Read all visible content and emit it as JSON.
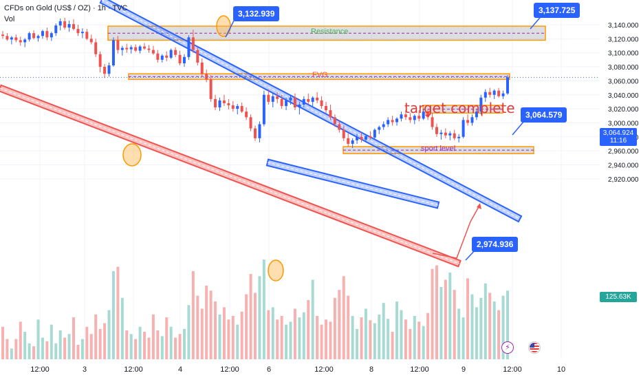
{
  "header": {
    "symbol_title": "CFDs on Gold (US$ / OZ) · 1h · TVC",
    "volume_label": "Vol"
  },
  "chart_data": {
    "type": "candlestick",
    "title": "CFDs on Gold (US$ / OZ) · 1h · TVC",
    "y_axis": {
      "ticks": [
        "3,140.000",
        "3,120.000",
        "3,100.000",
        "3,080.000",
        "3,060.000",
        "3,040.000",
        "3,020.000",
        "3,000.000",
        "2,980.000",
        "2,960.000",
        "2,940.000",
        "2,920.000"
      ],
      "tick_values": [
        3140,
        3120,
        3100,
        3080,
        3060,
        3040,
        3020,
        3000,
        2980,
        2960,
        2940,
        2920
      ],
      "range": [
        2912,
        3150
      ]
    },
    "x_axis": {
      "ticks": [
        "12:00",
        "3",
        "12:00",
        "4",
        "12:00",
        "6",
        "12:00",
        "8",
        "12:00",
        "9",
        "12:00",
        "10"
      ]
    },
    "current_price": "3,064.924",
    "countdown": "11:16",
    "volume_value": "125.63K",
    "colors": {
      "up": "#26a69a",
      "down": "#ef5350",
      "accent": "#2962ff",
      "zone_border": "#ff9800",
      "annotation_red": "#e53935"
    },
    "zones": [
      {
        "label": "Resistance",
        "low": 3118,
        "high": 3138,
        "label_color": "#4caf50"
      },
      {
        "label": "FVG",
        "low": 3062,
        "high": 3070,
        "label_color": "#ef5350"
      },
      {
        "label": "",
        "low": 3014,
        "high": 3025,
        "label_color": ""
      },
      {
        "label": "sport level",
        "low": 2956,
        "high": 2966,
        "label_color": "#9c27b0"
      }
    ],
    "callouts": [
      "3,132.939",
      "3,137.725",
      "3,064.579",
      "2,974.936"
    ],
    "annotations": [
      "target complete"
    ],
    "icons": [
      "lightning-icon",
      "us-flag-icon"
    ],
    "candles": [
      [
        3126,
        3131,
        3120,
        3124
      ],
      [
        3124,
        3128,
        3117,
        3119
      ],
      [
        3119,
        3124,
        3112,
        3122
      ],
      [
        3122,
        3126,
        3115,
        3118
      ],
      [
        3118,
        3123,
        3110,
        3115
      ],
      [
        3115,
        3121,
        3108,
        3119
      ],
      [
        3119,
        3130,
        3116,
        3128
      ],
      [
        3128,
        3132,
        3119,
        3121
      ],
      [
        3121,
        3126,
        3116,
        3124
      ],
      [
        3124,
        3133,
        3120,
        3131
      ],
      [
        3131,
        3136,
        3118,
        3122
      ],
      [
        3122,
        3130,
        3117,
        3128
      ],
      [
        3128,
        3142,
        3124,
        3139
      ],
      [
        3139,
        3149,
        3132,
        3145
      ],
      [
        3145,
        3150,
        3133,
        3136
      ],
      [
        3136,
        3146,
        3130,
        3141
      ],
      [
        3141,
        3148,
        3132,
        3134
      ],
      [
        3134,
        3140,
        3124,
        3128
      ],
      [
        3128,
        3135,
        3121,
        3130
      ],
      [
        3130,
        3134,
        3118,
        3120
      ],
      [
        3120,
        3126,
        3112,
        3115
      ],
      [
        3115,
        3120,
        3094,
        3098
      ],
      [
        3098,
        3102,
        3072,
        3080
      ],
      [
        3080,
        3084,
        3064,
        3070
      ],
      [
        3070,
        3086,
        3066,
        3082
      ],
      [
        3082,
        3122,
        3080,
        3118
      ],
      [
        3118,
        3124,
        3099,
        3104
      ],
      [
        3104,
        3110,
        3096,
        3107
      ],
      [
        3107,
        3113,
        3100,
        3105
      ],
      [
        3105,
        3111,
        3099,
        3108
      ],
      [
        3108,
        3112,
        3101,
        3103
      ],
      [
        3103,
        3111,
        3099,
        3109
      ],
      [
        3109,
        3114,
        3104,
        3106
      ],
      [
        3106,
        3111,
        3100,
        3104
      ],
      [
        3104,
        3110,
        3097,
        3099
      ],
      [
        3099,
        3104,
        3086,
        3090
      ],
      [
        3090,
        3098,
        3086,
        3096
      ],
      [
        3096,
        3102,
        3088,
        3093
      ],
      [
        3093,
        3106,
        3091,
        3104
      ],
      [
        3104,
        3108,
        3094,
        3097
      ],
      [
        3097,
        3103,
        3082,
        3085
      ],
      [
        3085,
        3098,
        3080,
        3094
      ],
      [
        3094,
        3125,
        3090,
        3122
      ],
      [
        3122,
        3133,
        3100,
        3104
      ],
      [
        3104,
        3108,
        3082,
        3086
      ],
      [
        3086,
        3092,
        3066,
        3070
      ],
      [
        3070,
        3076,
        3058,
        3062
      ],
      [
        3062,
        3068,
        3030,
        3034
      ],
      [
        3034,
        3040,
        3018,
        3022
      ],
      [
        3022,
        3036,
        3017,
        3032
      ],
      [
        3032,
        3040,
        3024,
        3028
      ],
      [
        3028,
        3034,
        3019,
        3025
      ],
      [
        3025,
        3031,
        3016,
        3020
      ],
      [
        3020,
        3027,
        3012,
        3024
      ],
      [
        3024,
        3029,
        3014,
        3016
      ],
      [
        3016,
        3022,
        3004,
        3008
      ],
      [
        3008,
        3012,
        2988,
        2992
      ],
      [
        2992,
        2996,
        2974,
        2978
      ],
      [
        2978,
        3002,
        2972,
        2998
      ],
      [
        2998,
        3046,
        2995,
        3040
      ],
      [
        3040,
        3048,
        3026,
        3030
      ],
      [
        3030,
        3042,
        3022,
        3038
      ],
      [
        3038,
        3044,
        3028,
        3034
      ],
      [
        3034,
        3040,
        3020,
        3024
      ],
      [
        3024,
        3036,
        3018,
        3032
      ],
      [
        3032,
        3040,
        3026,
        3036
      ],
      [
        3036,
        3042,
        3018,
        3022
      ],
      [
        3022,
        3030,
        3012,
        3026
      ],
      [
        3026,
        3038,
        3022,
        3034
      ],
      [
        3034,
        3042,
        3026,
        3030
      ],
      [
        3030,
        3038,
        3024,
        3036
      ],
      [
        3036,
        3044,
        3028,
        3032
      ],
      [
        3032,
        3038,
        3020,
        3024
      ],
      [
        3024,
        3030,
        3014,
        3018
      ],
      [
        3018,
        3026,
        3004,
        3008
      ],
      [
        3008,
        3012,
        2994,
        2998
      ],
      [
        2998,
        3004,
        2986,
        2990
      ],
      [
        2990,
        2996,
        2974,
        2978
      ],
      [
        2978,
        2986,
        2966,
        2970
      ],
      [
        2970,
        2978,
        2964,
        2975
      ],
      [
        2975,
        2984,
        2970,
        2980
      ],
      [
        2980,
        2986,
        2972,
        2976
      ],
      [
        2976,
        2984,
        2972,
        2981
      ],
      [
        2981,
        2988,
        2976,
        2979
      ],
      [
        2979,
        2992,
        2976,
        2990
      ],
      [
        2990,
        2996,
        2984,
        2994
      ],
      [
        2994,
        3002,
        2990,
        2998
      ],
      [
        2998,
        3008,
        2994,
        3004
      ],
      [
        3004,
        3010,
        2996,
        3001
      ],
      [
        3001,
        3008,
        2996,
        3006
      ],
      [
        3006,
        3016,
        3002,
        3012
      ],
      [
        3012,
        3018,
        3004,
        3008
      ],
      [
        3008,
        3014,
        3000,
        3004
      ],
      [
        3004,
        3012,
        2998,
        3010
      ],
      [
        3010,
        3018,
        3002,
        3006
      ],
      [
        3006,
        3020,
        3004,
        3016
      ],
      [
        3016,
        3020,
        3004,
        3008
      ],
      [
        3008,
        3014,
        2990,
        2994
      ],
      [
        2994,
        2999,
        2980,
        2984
      ],
      [
        2984,
        2990,
        2976,
        2986
      ],
      [
        2986,
        2992,
        2978,
        2982
      ],
      [
        2982,
        2988,
        2975,
        2985
      ],
      [
        2985,
        2990,
        2975,
        2978
      ],
      [
        2978,
        2984,
        2972,
        2980
      ],
      [
        2980,
        3008,
        2978,
        3004
      ],
      [
        3004,
        3012,
        2996,
        3000
      ],
      [
        3000,
        3012,
        2996,
        3008
      ],
      [
        3008,
        3020,
        3004,
        3016
      ],
      [
        3016,
        3040,
        3012,
        3036
      ],
      [
        3036,
        3048,
        3030,
        3044
      ],
      [
        3044,
        3050,
        3036,
        3040
      ],
      [
        3040,
        3048,
        3034,
        3046
      ],
      [
        3046,
        3050,
        3036,
        3038
      ],
      [
        3038,
        3046,
        3034,
        3042
      ],
      [
        3042,
        3068,
        3040,
        3065
      ]
    ],
    "volumes": [
      45,
      28,
      15,
      28,
      52,
      38,
      22,
      18,
      55,
      30,
      25,
      48,
      22,
      40,
      30,
      35,
      58,
      20,
      28,
      45,
      35,
      62,
      42,
      50,
      68,
      122,
      128,
      85,
      40,
      35,
      28,
      45,
      38,
      30,
      62,
      40,
      32,
      58,
      45,
      30,
      35,
      42,
      75,
      122,
      88,
      70,
      102,
      95,
      80,
      62,
      72,
      55,
      60,
      48,
      66,
      90,
      118,
      92,
      115,
      138,
      68,
      72,
      55,
      60,
      48,
      52,
      70,
      58,
      65,
      82,
      110,
      60,
      48,
      55,
      52,
      85,
      96,
      115,
      88,
      60,
      42,
      58,
      70,
      54,
      50,
      62,
      78,
      56,
      38,
      80,
      68,
      55,
      42,
      60,
      52,
      46,
      64,
      125,
      130,
      100,
      110,
      120,
      96,
      70,
      58,
      112,
      90,
      72,
      85,
      105,
      92,
      80,
      68,
      88,
      95
    ]
  }
}
